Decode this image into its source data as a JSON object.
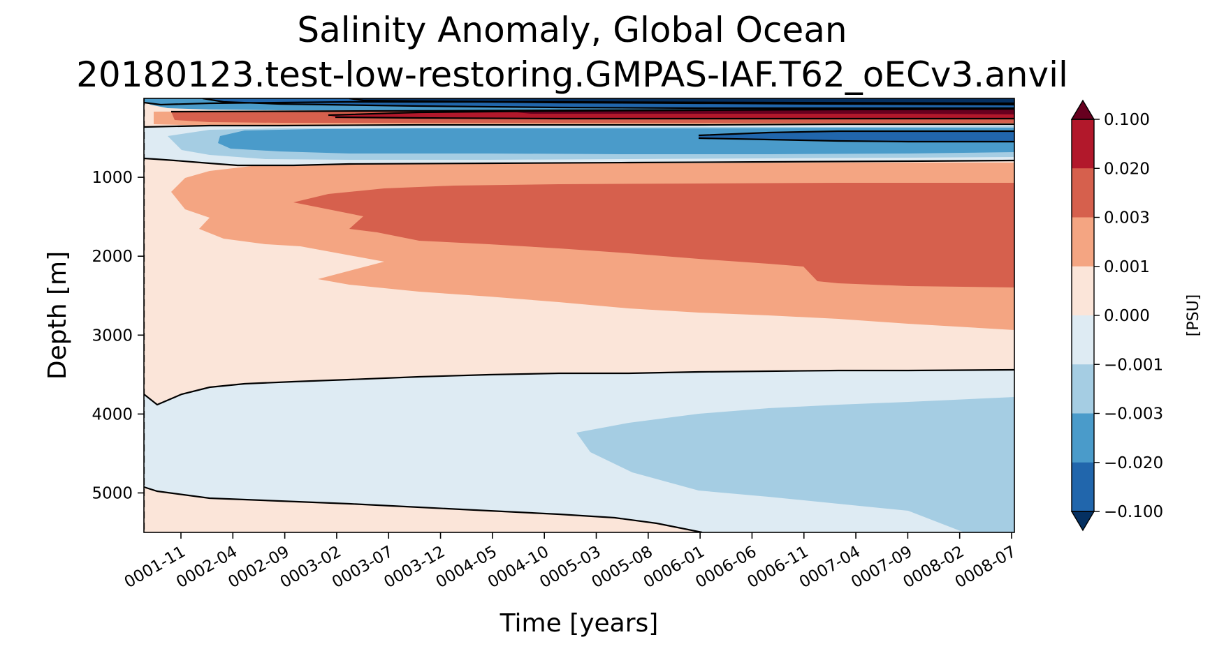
{
  "chart_data": {
    "type": "heatmap",
    "subtype": "filled-contour",
    "title": "Salinity Anomaly, Global Ocean",
    "subtitle": "20180123.test-low-restoring.GMPAS-IAF.T62_oECv3.anvil",
    "xlabel": "Time [years]",
    "ylabel": "Depth [m]",
    "x_tick_labels": [
      "0001-11",
      "0002-04",
      "0002-09",
      "0003-02",
      "0003-07",
      "0003-12",
      "0004-05",
      "0004-10",
      "0005-03",
      "0005-08",
      "0006-01",
      "0006-06",
      "0006-11",
      "0007-04",
      "0007-09",
      "0008-02",
      "0008-07"
    ],
    "y_ticks": [
      1000,
      2000,
      3000,
      4000,
      5000
    ],
    "y_tick_labels": [
      "1000",
      "2000",
      "3000",
      "4000",
      "5000"
    ],
    "ylim": [
      5500,
      0
    ],
    "y_inverted": true,
    "colorbar": {
      "label": "[PSU]",
      "tick_labels": [
        "0.100",
        "0.020",
        "0.003",
        "0.001",
        "0.000",
        "−0.001",
        "−0.003",
        "−0.020",
        "−0.100"
      ],
      "levels": [
        0.1,
        0.02,
        0.003,
        0.001,
        0.0,
        -0.001,
        -0.003,
        -0.02,
        -0.1
      ],
      "band_colors": [
        "#b2182b",
        "#d6604d",
        "#f4a582",
        "#fbe5d9",
        "#deebf3",
        "#a5cde3",
        "#4a9bca",
        "#2166ac"
      ],
      "extend_high_color": "#67001f",
      "extend_low_color": "#053061",
      "extend": "both"
    },
    "contour_line_levels": [
      0.0,
      0.02,
      -0.02,
      0.1,
      -0.1
    ],
    "regions": [
      {
        "depth_range_m": [
          0,
          60
        ],
        "trend": "freshening; -0.020 to -0.100 PSU after 0003"
      },
      {
        "depth_range_m": [
          60,
          300
        ],
        "trend": "salinification; 0.020 to 0.100 PSU after 0003"
      },
      {
        "depth_range_m": [
          300,
          800
        ],
        "trend": "freshening; -0.003 to -0.020 PSU, below -0.020 after 0006-06"
      },
      {
        "depth_range_m": [
          800,
          3500
        ],
        "trend": "salinification; 0.003 to 0.020 PSU core at 1000-2400 m"
      },
      {
        "depth_range_m": [
          3500,
          5000
        ],
        "trend": "freshening; -0.001 to -0.003 PSU deep after 0005"
      },
      {
        "depth_range_m": [
          5000,
          5500
        ],
        "trend": "slight salinification; 0.000 to 0.001 PSU"
      }
    ]
  }
}
